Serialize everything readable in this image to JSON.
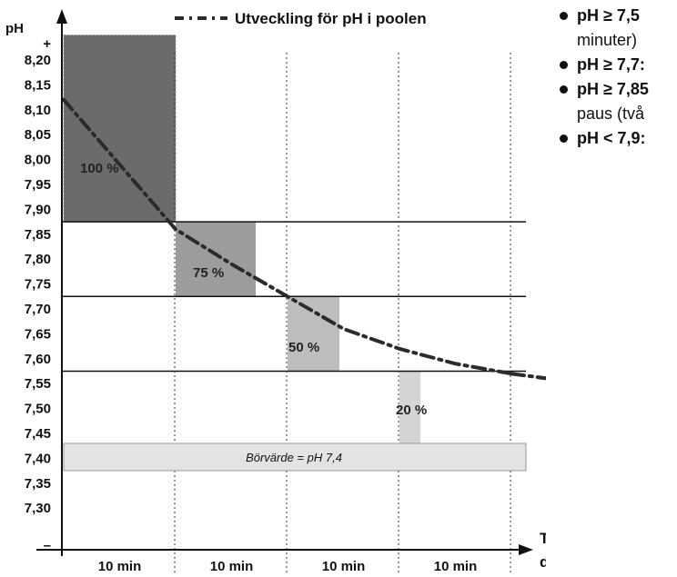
{
  "chart_data": {
    "type": "bar",
    "title": "",
    "ylabel": "pH",
    "xlabel": "Tid för doseringcykel",
    "legend": {
      "label": "Utveckling för pH i poolen",
      "placement": "top"
    },
    "y_ticks": [
      "+",
      "8,20",
      "8,15",
      "8,10",
      "8,05",
      "8,00",
      "7,95",
      "7,90",
      "7,85",
      "7,80",
      "7,75",
      "7,70",
      "7,65",
      "7,60",
      "7,55",
      "7,50",
      "7,45",
      "7,40",
      "7,35",
      "7,30",
      "–"
    ],
    "ylim": [
      7.25,
      8.25
    ],
    "categories": [
      "10 min",
      "10 min",
      "10 min",
      "10 min"
    ],
    "bands": [
      {
        "label": "100 %",
        "from": 7.875,
        "to": 8.25,
        "color": "#6b6b6b"
      },
      {
        "label": "75 %",
        "from": 7.725,
        "to": 7.875,
        "color": "#9c9c9c"
      },
      {
        "label": "50 %",
        "from": 7.575,
        "to": 7.725,
        "color": "#bdbdbd"
      },
      {
        "label": "20 %",
        "from": 7.425,
        "to": 7.575,
        "color": "#d4d4d4"
      }
    ],
    "setpoint": {
      "label": "Börvärde = pH 7,4",
      "value": 7.4
    },
    "series": [
      {
        "name": "Utveckling för pH i poolen",
        "x": [
          0,
          5,
          10,
          15,
          20,
          25,
          30,
          35,
          40
        ],
        "values": [
          8.12,
          7.99,
          7.86,
          7.79,
          7.725,
          7.66,
          7.62,
          7.59,
          7.57
        ]
      }
    ],
    "series_tail": {
      "x": [
        45,
        50,
        55,
        60,
        65,
        70,
        75,
        80
      ],
      "values": [
        7.555,
        7.54,
        7.52,
        7.505,
        7.49,
        7.475,
        7.46,
        7.44
      ]
    }
  },
  "bullets": [
    {
      "key": "pH ≥ 7,5",
      "text": "",
      "cont": "minuter)"
    },
    {
      "key": "pH ≥ 7,7",
      "text": ":",
      "cont": ""
    },
    {
      "key": "pH ≥ 7,85",
      "text": "",
      "cont": "paus (två"
    },
    {
      "key": "pH < 7,9",
      "text": ":",
      "cont": ""
    }
  ]
}
